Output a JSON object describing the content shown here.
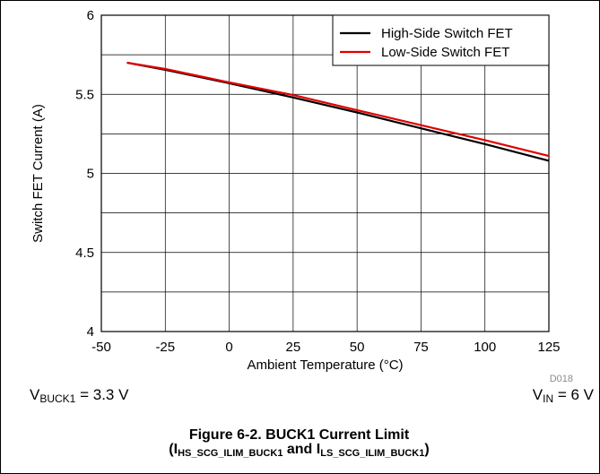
{
  "chart_data": {
    "type": "line",
    "xlabel": "Ambient Temperature (°C)",
    "ylabel": "Switch FET Current (A)",
    "xlim": [
      -50,
      125
    ],
    "ylim": [
      4,
      6
    ],
    "xticks": [
      "-50",
      "-25",
      "0",
      "25",
      "50",
      "75",
      "100",
      "125"
    ],
    "yticks": [
      "4",
      "4.5",
      "5",
      "5.5",
      "6"
    ],
    "grid": true,
    "legend_position": "top-right",
    "figure_id": "D018",
    "series": [
      {
        "name": "High-Side Switch FET",
        "color": "#000000",
        "x": [
          -40,
          -25,
          0,
          25,
          50,
          75,
          100,
          125
        ],
        "y": [
          5.7,
          5.655,
          5.57,
          5.48,
          5.385,
          5.285,
          5.185,
          5.08
        ]
      },
      {
        "name": "Low-Side Switch FET",
        "color": "#e00000",
        "x": [
          -40,
          -25,
          0,
          25,
          50,
          75,
          100,
          125
        ],
        "y": [
          5.7,
          5.66,
          5.575,
          5.495,
          5.4,
          5.305,
          5.21,
          5.11
        ]
      }
    ]
  },
  "conditions": {
    "left": {
      "prefix": "V",
      "sub": "BUCK1",
      "suffix": " = 3.3 V"
    },
    "right": {
      "prefix": "V",
      "sub": "IN",
      "suffix": " = 6 V"
    }
  },
  "caption": {
    "line1": "Figure 6-2. BUCK1 Current Limit",
    "line2_open": "(I",
    "line2_sub1": "HS_SCG_ILIM_BUCK1",
    "line2_mid": " and I",
    "line2_sub2": "LS_SCG_ILIM_BUCK1",
    "line2_close": ")"
  }
}
